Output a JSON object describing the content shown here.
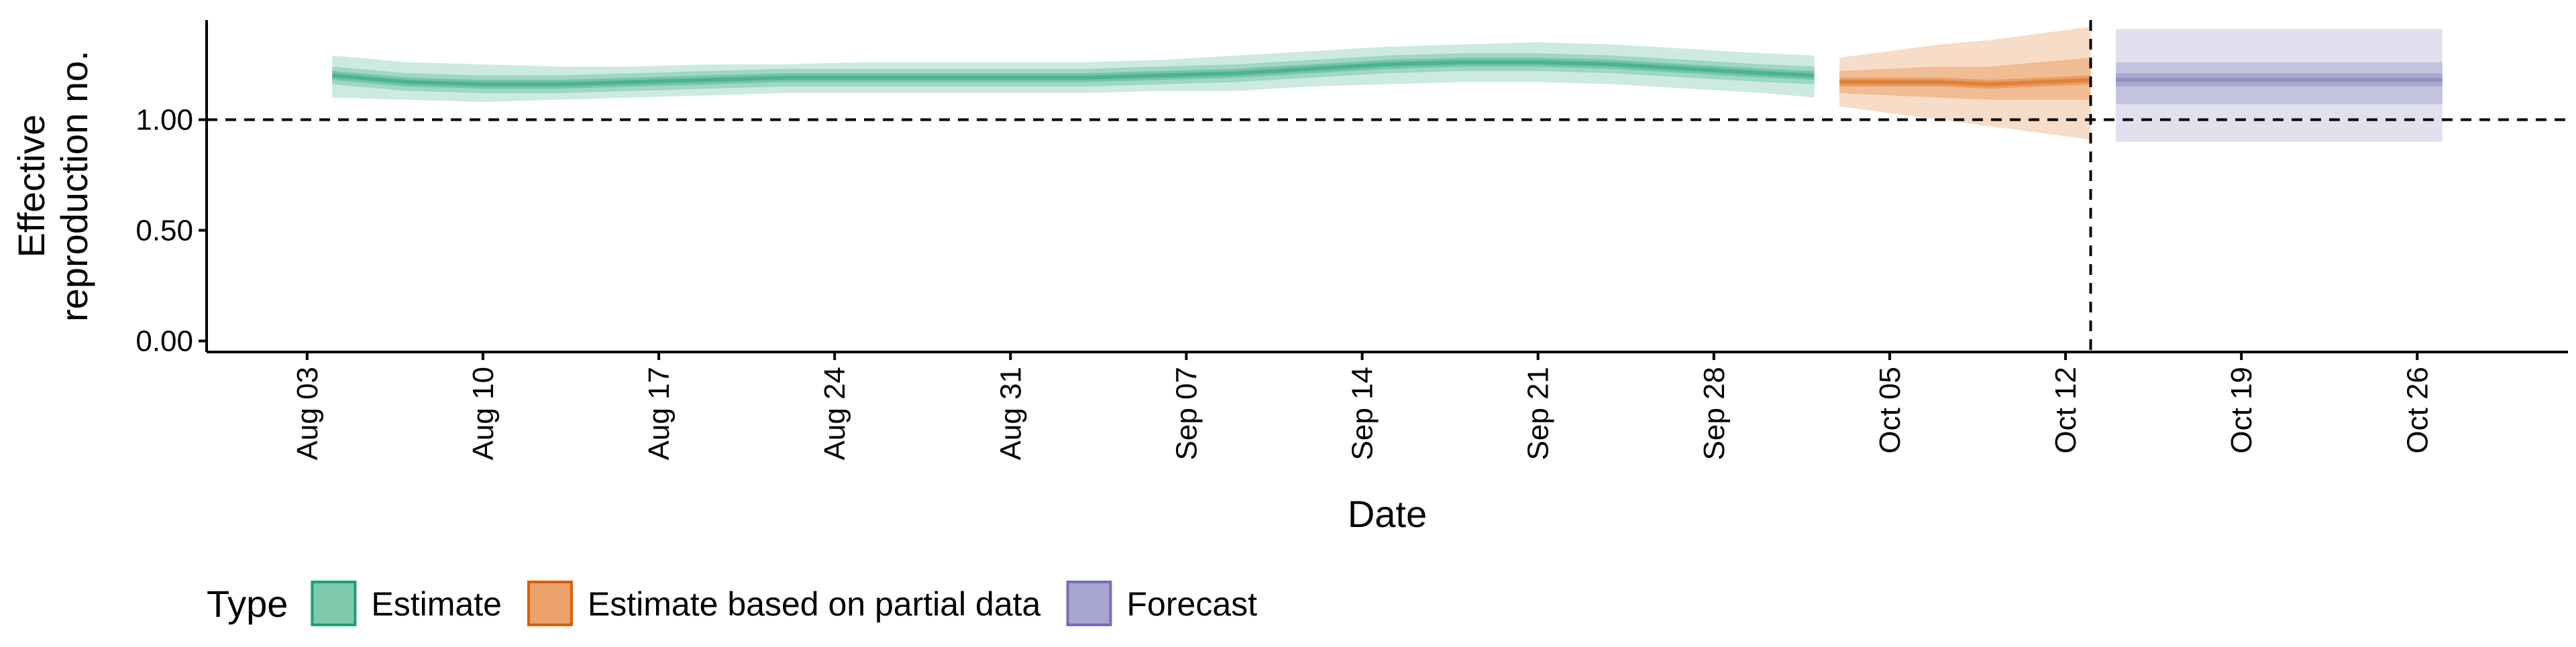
{
  "chart_data": {
    "type": "area",
    "xlabel": "Date",
    "ylabel_lines": [
      "Effective",
      "reproduction no."
    ],
    "ylim": [
      -0.05,
      1.45
    ],
    "xlim": [
      "2020-07-30",
      "2020-11-01"
    ],
    "y_ticks": [
      {
        "value": 0.0,
        "label": "0.00"
      },
      {
        "value": 0.5,
        "label": "0.50"
      },
      {
        "value": 1.0,
        "label": "1.00"
      }
    ],
    "x_ticks": [
      {
        "date": "2020-08-03",
        "label": "Aug 03"
      },
      {
        "date": "2020-08-10",
        "label": "Aug 10"
      },
      {
        "date": "2020-08-17",
        "label": "Aug 17"
      },
      {
        "date": "2020-08-24",
        "label": "Aug 24"
      },
      {
        "date": "2020-08-31",
        "label": "Aug 31"
      },
      {
        "date": "2020-09-07",
        "label": "Sep 07"
      },
      {
        "date": "2020-09-14",
        "label": "Sep 14"
      },
      {
        "date": "2020-09-21",
        "label": "Sep 21"
      },
      {
        "date": "2020-09-28",
        "label": "Sep 28"
      },
      {
        "date": "2020-10-05",
        "label": "Oct 05"
      },
      {
        "date": "2020-10-12",
        "label": "Oct 12"
      },
      {
        "date": "2020-10-19",
        "label": "Oct 19"
      },
      {
        "date": "2020-10-26",
        "label": "Oct 26"
      }
    ],
    "reference_lines": {
      "horizontal_y": 1.0,
      "vertical_date": "2020-10-13"
    },
    "grid": false,
    "legend": {
      "position": "bottom-left",
      "title": "Type",
      "items": [
        {
          "label": "Estimate",
          "fill": "#7fc9ad",
          "stroke": "#1b9e77"
        },
        {
          "label": "Estimate based on partial data",
          "fill": "#eba36b",
          "stroke": "#d95f02"
        },
        {
          "label": "Forecast",
          "fill": "#a9a5d1",
          "stroke": "#7570b3"
        }
      ]
    },
    "series": [
      {
        "name": "Estimate",
        "color": "#1b9e77",
        "x": [
          "2020-08-04",
          "2020-08-07",
          "2020-08-10",
          "2020-08-13",
          "2020-08-16",
          "2020-08-19",
          "2020-08-22",
          "2020-08-25",
          "2020-08-28",
          "2020-08-31",
          "2020-09-03",
          "2020-09-06",
          "2020-09-09",
          "2020-09-12",
          "2020-09-15",
          "2020-09-18",
          "2020-09-21",
          "2020-09-24",
          "2020-09-27",
          "2020-09-30",
          "2020-10-02"
        ],
        "median": [
          1.2,
          1.17,
          1.16,
          1.16,
          1.17,
          1.18,
          1.19,
          1.19,
          1.19,
          1.19,
          1.19,
          1.2,
          1.21,
          1.23,
          1.25,
          1.26,
          1.26,
          1.25,
          1.23,
          1.21,
          1.2
        ],
        "ci20": [
          [
            1.18,
            1.22
          ],
          [
            1.15,
            1.19
          ],
          [
            1.14,
            1.18
          ],
          [
            1.14,
            1.18
          ],
          [
            1.15,
            1.19
          ],
          [
            1.16,
            1.2
          ],
          [
            1.17,
            1.21
          ],
          [
            1.17,
            1.21
          ],
          [
            1.17,
            1.21
          ],
          [
            1.17,
            1.21
          ],
          [
            1.17,
            1.21
          ],
          [
            1.18,
            1.22
          ],
          [
            1.19,
            1.23
          ],
          [
            1.21,
            1.25
          ],
          [
            1.23,
            1.27
          ],
          [
            1.24,
            1.28
          ],
          [
            1.24,
            1.28
          ],
          [
            1.23,
            1.27
          ],
          [
            1.21,
            1.25
          ],
          [
            1.19,
            1.23
          ],
          [
            1.18,
            1.22
          ]
        ],
        "ci50": [
          [
            1.16,
            1.24
          ],
          [
            1.13,
            1.21
          ],
          [
            1.12,
            1.2
          ],
          [
            1.12,
            1.2
          ],
          [
            1.13,
            1.21
          ],
          [
            1.14,
            1.22
          ],
          [
            1.15,
            1.23
          ],
          [
            1.15,
            1.23
          ],
          [
            1.15,
            1.23
          ],
          [
            1.15,
            1.23
          ],
          [
            1.15,
            1.23
          ],
          [
            1.16,
            1.24
          ],
          [
            1.17,
            1.25
          ],
          [
            1.19,
            1.27
          ],
          [
            1.21,
            1.29
          ],
          [
            1.22,
            1.3
          ],
          [
            1.22,
            1.3
          ],
          [
            1.21,
            1.29
          ],
          [
            1.19,
            1.27
          ],
          [
            1.17,
            1.25
          ],
          [
            1.16,
            1.24
          ]
        ],
        "ci90": [
          [
            1.1,
            1.29
          ],
          [
            1.09,
            1.26
          ],
          [
            1.08,
            1.25
          ],
          [
            1.09,
            1.24
          ],
          [
            1.1,
            1.24
          ],
          [
            1.11,
            1.25
          ],
          [
            1.12,
            1.25
          ],
          [
            1.12,
            1.26
          ],
          [
            1.12,
            1.26
          ],
          [
            1.12,
            1.26
          ],
          [
            1.12,
            1.26
          ],
          [
            1.13,
            1.27
          ],
          [
            1.13,
            1.29
          ],
          [
            1.15,
            1.31
          ],
          [
            1.16,
            1.33
          ],
          [
            1.17,
            1.34
          ],
          [
            1.17,
            1.35
          ],
          [
            1.16,
            1.34
          ],
          [
            1.14,
            1.32
          ],
          [
            1.12,
            1.3
          ],
          [
            1.1,
            1.29
          ]
        ]
      },
      {
        "name": "Estimate based on partial data",
        "color": "#d95f02",
        "x": [
          "2020-10-03",
          "2020-10-05",
          "2020-10-07",
          "2020-10-09",
          "2020-10-11",
          "2020-10-13"
        ],
        "median": [
          1.17,
          1.17,
          1.17,
          1.16,
          1.17,
          1.18
        ],
        "ci20": [
          [
            1.15,
            1.19
          ],
          [
            1.15,
            1.19
          ],
          [
            1.15,
            1.19
          ],
          [
            1.14,
            1.18
          ],
          [
            1.15,
            1.19
          ],
          [
            1.16,
            1.2
          ]
        ],
        "ci50": [
          [
            1.12,
            1.22
          ],
          [
            1.11,
            1.23
          ],
          [
            1.1,
            1.24
          ],
          [
            1.09,
            1.24
          ],
          [
            1.09,
            1.26
          ],
          [
            1.09,
            1.28
          ]
        ],
        "ci90": [
          [
            1.06,
            1.28
          ],
          [
            1.03,
            1.31
          ],
          [
            1.0,
            1.34
          ],
          [
            0.97,
            1.36
          ],
          [
            0.94,
            1.39
          ],
          [
            0.91,
            1.42
          ]
        ]
      },
      {
        "name": "Forecast",
        "color": "#7570b3",
        "x": [
          "2020-10-14",
          "2020-10-27"
        ],
        "median": [
          1.18,
          1.18
        ],
        "ci20": [
          [
            1.15,
            1.21
          ],
          [
            1.15,
            1.21
          ]
        ],
        "ci50": [
          [
            1.07,
            1.26
          ],
          [
            1.07,
            1.26
          ]
        ],
        "ci90": [
          [
            0.9,
            1.41
          ],
          [
            0.9,
            1.41
          ]
        ]
      }
    ]
  }
}
